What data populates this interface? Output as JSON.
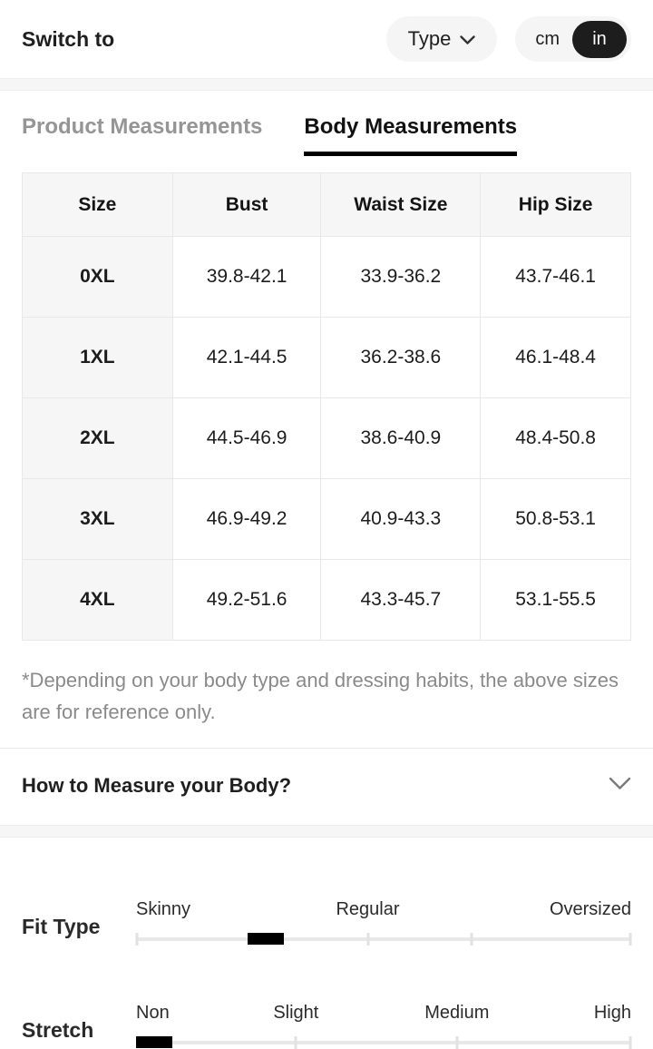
{
  "header": {
    "switch_to_label": "Switch to",
    "type_button": {
      "label": "Type"
    },
    "unit_toggle": {
      "cm": "cm",
      "in": "in",
      "selected": "in"
    }
  },
  "tabs": {
    "items": [
      {
        "label": "Product Measurements",
        "active": false
      },
      {
        "label": "Body Measurements",
        "active": true
      }
    ]
  },
  "size_table": {
    "columns": [
      "Size",
      "Bust",
      "Waist Size",
      "Hip Size"
    ],
    "rows": [
      [
        "0XL",
        "39.8-42.1",
        "33.9-36.2",
        "43.7-46.1"
      ],
      [
        "1XL",
        "42.1-44.5",
        "36.2-38.6",
        "46.1-48.4"
      ],
      [
        "2XL",
        "44.5-46.9",
        "38.6-40.9",
        "48.4-50.8"
      ],
      [
        "3XL",
        "46.9-49.2",
        "40.9-43.3",
        "50.8-53.1"
      ],
      [
        "4XL",
        "49.2-51.6",
        "43.3-45.7",
        "53.1-55.5"
      ]
    ]
  },
  "note": "*Depending on your body type and dressing habits, the above sizes are for reference only.",
  "how_to_measure": {
    "label": "How to Measure your Body?"
  },
  "attributes": [
    {
      "name": "Fit Type",
      "labels": [
        "Skinny",
        "Regular",
        "Oversized"
      ],
      "selected_value": "between Skinny and Regular",
      "indicator_percent": 26
    },
    {
      "name": "Stretch",
      "labels": [
        "Non",
        "Slight",
        "Medium",
        "High"
      ],
      "selected_value": "Non",
      "indicator_percent": 3.6
    }
  ],
  "colors": {
    "accent_black": "#000000",
    "pill_background": "#f5f5f5",
    "selected_unit_background": "#1d1d1d",
    "inactive_tab_text": "#959595",
    "table_header_background": "#f6f6f6",
    "note_text": "#8a8a8a",
    "track": "#e8e8e8"
  }
}
